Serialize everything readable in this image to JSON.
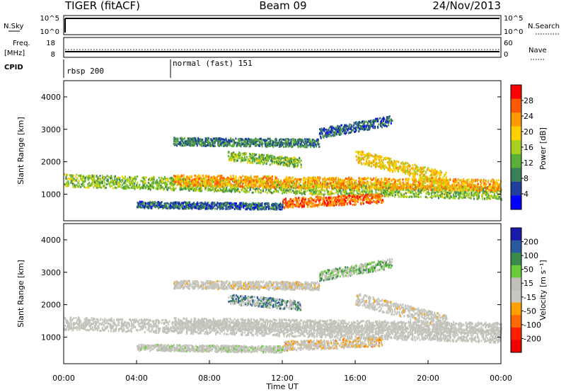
{
  "header": {
    "radar": "TIGER (fitACF)",
    "beam": "Beam 09",
    "date": "24/Nov/2013"
  },
  "strips": {
    "nsky_label": "N.Sky",
    "nsky_ticks": [
      "10^5",
      "10^0"
    ],
    "nsearch_label": "N.Search",
    "nsearch_ticks": [
      "10^5",
      "10^0"
    ],
    "freq_label": "Freq.",
    "freq_unit": "[MHz]",
    "freq_ticks": [
      "18",
      "8"
    ],
    "nave_label": "Nave",
    "nave_ticks": [
      "60",
      "0"
    ],
    "cpid_label": "CPID",
    "cpid_modes": [
      "rbsp 200",
      "normal (fast) 151"
    ]
  },
  "colors": {
    "power_scale": [
      "#0000ff",
      "#1f3f9f",
      "#3a7f5a",
      "#5aaf3a",
      "#a8d020",
      "#ffd000",
      "#ff9a00",
      "#ff5a00",
      "#ff0000"
    ],
    "velocity_scale": [
      "#1a1aaa",
      "#2a5aa0",
      "#3a8a4a",
      "#6acc3a",
      "#c0c0b8",
      "#c8c8c0",
      "#ffa000",
      "#ff6a00",
      "#ff2000",
      "#ee0000"
    ],
    "ground_scatter": "#c8c8c0"
  },
  "chart_data": [
    {
      "type": "heatmap",
      "name": "power",
      "ylabel": "Slant Range [km]",
      "yticks": [
        1000,
        2000,
        3000,
        4000
      ],
      "ylim": [
        180,
        4500
      ],
      "xlim": [
        0,
        24
      ],
      "colorbar_label": "Power [dB]",
      "colorbar_ticks": [
        "28",
        "24",
        "20",
        "16",
        "12",
        "8",
        "4"
      ],
      "colorbar_range": [
        0,
        32
      ],
      "scatter_bands": [
        {
          "t": [
            0,
            24
          ],
          "r": [
            1450,
            1050
          ],
          "w": 400,
          "v": 14
        },
        {
          "t": [
            6,
            24
          ],
          "r": [
            1450,
            1300
          ],
          "w": 350,
          "v": 22
        },
        {
          "t": [
            12,
            17.5
          ],
          "r": [
            750,
            900
          ],
          "w": 300,
          "v": 26
        },
        {
          "t": [
            9,
            13
          ],
          "r": [
            2200,
            2000
          ],
          "w": 300,
          "v": 14
        },
        {
          "t": [
            6,
            14
          ],
          "r": [
            2650,
            2600
          ],
          "w": 250,
          "v": 9
        },
        {
          "t": [
            14,
            18
          ],
          "r": [
            2900,
            3300
          ],
          "w": 300,
          "v": 7
        },
        {
          "t": [
            16,
            21
          ],
          "r": [
            2200,
            1500
          ],
          "w": 400,
          "v": 20
        },
        {
          "t": [
            4,
            12
          ],
          "r": [
            700,
            650
          ],
          "w": 200,
          "v": 7
        }
      ]
    },
    {
      "type": "heatmap",
      "name": "velocity",
      "ylabel": "Slant Range [km]",
      "yticks": [
        1000,
        2000,
        3000,
        4000
      ],
      "ylim": [
        180,
        4500
      ],
      "xlim": [
        0,
        24
      ],
      "colorbar_label": "Velocity [m s⁻¹]",
      "colorbar_ticks": [
        "200",
        "100",
        "50",
        "15",
        "-15",
        "-50",
        "-100",
        "-200"
      ],
      "colorbar_range": [
        -250,
        250
      ],
      "scatter_bands": [
        {
          "t": [
            0,
            24
          ],
          "r": [
            1450,
            1050
          ],
          "w": 400,
          "v": 0
        },
        {
          "t": [
            6,
            24
          ],
          "r": [
            1450,
            1300
          ],
          "w": 350,
          "v": 0
        },
        {
          "t": [
            12,
            17.5
          ],
          "r": [
            750,
            900
          ],
          "w": 300,
          "v": -60
        },
        {
          "t": [
            9,
            13
          ],
          "r": [
            2200,
            2000
          ],
          "w": 300,
          "v": 150
        },
        {
          "t": [
            6,
            14
          ],
          "r": [
            2650,
            2600
          ],
          "w": 250,
          "v": -30
        },
        {
          "t": [
            14,
            18
          ],
          "r": [
            2900,
            3300
          ],
          "w": 300,
          "v": 100
        },
        {
          "t": [
            16,
            21
          ],
          "r": [
            2200,
            1500
          ],
          "w": 400,
          "v": -20
        },
        {
          "t": [
            4,
            12
          ],
          "r": [
            700,
            650
          ],
          "w": 200,
          "v": 30
        }
      ]
    }
  ],
  "time_axis": {
    "ticks": [
      "00:00",
      "04:00",
      "08:00",
      "12:00",
      "16:00",
      "20:00",
      "00:00"
    ],
    "label": "Time UT"
  }
}
